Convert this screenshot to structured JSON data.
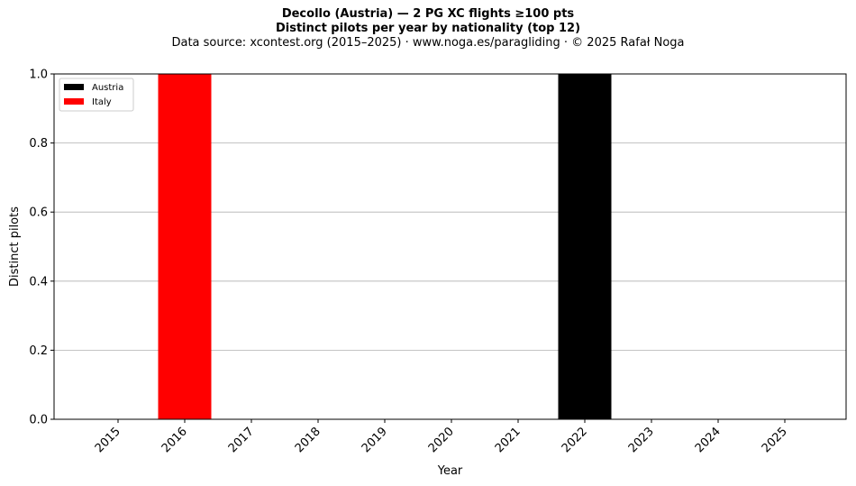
{
  "chart_data": {
    "type": "bar",
    "title": "Decollo (Austria)  —  2 PG XC flights ≥100 pts",
    "subtitle": "Distinct pilots per year by nationality (top 12)",
    "source": "Data source: xcontest.org (2015–2025)  ·  www.noga.es/paragliding  ·  © 2025 Rafał Noga",
    "xlabel": "Year",
    "ylabel": "Distinct pilots",
    "categories": [
      "2015",
      "2016",
      "2017",
      "2018",
      "2019",
      "2020",
      "2021",
      "2022",
      "2023",
      "2024",
      "2025"
    ],
    "series": [
      {
        "name": "Austria",
        "color": "#000000",
        "values": [
          0,
          0,
          0,
          0,
          0,
          0,
          0,
          1,
          0,
          0,
          0
        ]
      },
      {
        "name": "Italy",
        "color": "#ff0000",
        "values": [
          0,
          1,
          0,
          0,
          0,
          0,
          0,
          0,
          0,
          0,
          0
        ]
      }
    ],
    "stacked": true,
    "ylim": [
      0,
      1
    ],
    "yticks": [
      "0.0",
      "0.2",
      "0.4",
      "0.6",
      "0.8",
      "1.0"
    ],
    "grid": "y",
    "legend_position": "top-left"
  }
}
